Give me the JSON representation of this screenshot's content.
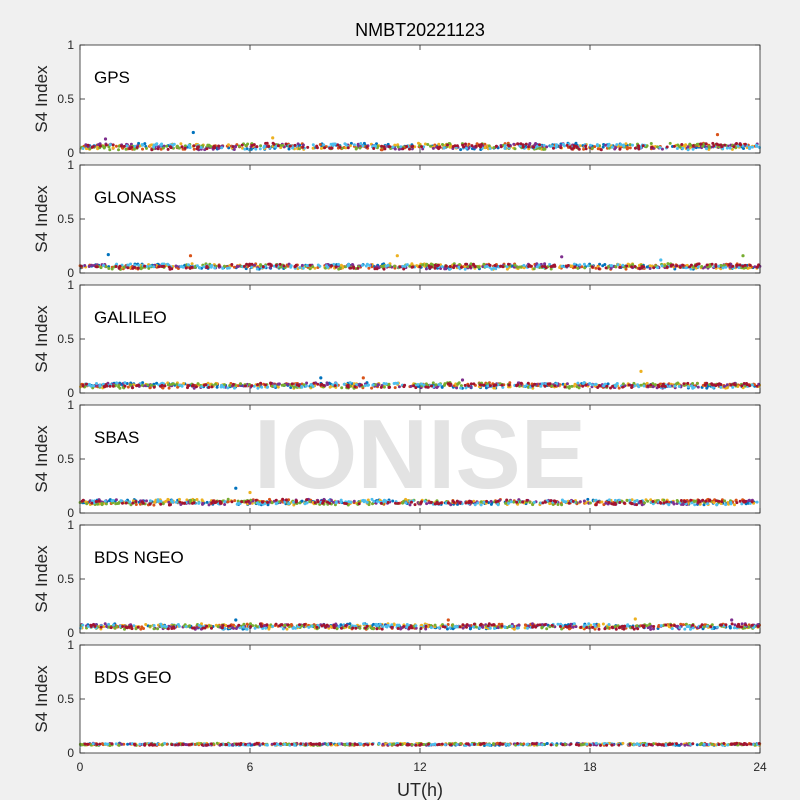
{
  "figure": {
    "title": "NMBT20221123",
    "watermark": "IONISE",
    "xlabel": "UT(h)",
    "background_color": "#f0f0f0",
    "panel_color": "#ffffff",
    "axis_color": "#262626",
    "watermark_color": "#e3e3e3"
  },
  "chart_data": {
    "type": "scatter",
    "series_colors": [
      "#0072bd",
      "#d95319",
      "#edb120",
      "#7e2f8e",
      "#77ac30",
      "#4dbeee",
      "#a2142f"
    ],
    "panels": [
      {
        "name": "GPS",
        "ylabel": "S4 Index",
        "xlim": [
          0,
          24
        ],
        "ylim": [
          0,
          1
        ],
        "xticks": [
          "0",
          "6",
          "12",
          "18",
          "24"
        ],
        "yticks": [
          "0",
          "0.5",
          "1"
        ],
        "base_level": 0.06,
        "spread": 0.035,
        "spikes": [
          [
            4.0,
            0.19
          ],
          [
            22.5,
            0.17
          ],
          [
            6.8,
            0.14
          ],
          [
            0.9,
            0.13
          ]
        ]
      },
      {
        "name": "GLONASS",
        "ylabel": "S4 Index",
        "xlim": [
          0,
          24
        ],
        "ylim": [
          0,
          1
        ],
        "xticks": [
          "0",
          "6",
          "12",
          "18",
          "24"
        ],
        "yticks": [
          "0",
          "0.5",
          "1"
        ],
        "base_level": 0.06,
        "spread": 0.03,
        "spikes": [
          [
            1.0,
            0.17
          ],
          [
            3.9,
            0.16
          ],
          [
            11.2,
            0.16
          ],
          [
            17.0,
            0.15
          ],
          [
            23.4,
            0.16
          ],
          [
            20.5,
            0.12
          ]
        ]
      },
      {
        "name": "GALILEO",
        "ylabel": "S4 Index",
        "xlim": [
          0,
          24
        ],
        "ylim": [
          0,
          1
        ],
        "xticks": [
          "0",
          "6",
          "12",
          "18",
          "24"
        ],
        "yticks": [
          "0",
          "0.5",
          "1"
        ],
        "base_level": 0.07,
        "spread": 0.03,
        "spikes": [
          [
            8.5,
            0.14
          ],
          [
            10.0,
            0.14
          ],
          [
            19.8,
            0.2
          ],
          [
            13.5,
            0.12
          ]
        ]
      },
      {
        "name": "SBAS",
        "ylabel": "S4 Index",
        "xlim": [
          0,
          24
        ],
        "ylim": [
          0,
          1
        ],
        "xticks": [
          "0",
          "6",
          "12",
          "18",
          "24"
        ],
        "yticks": [
          "0",
          "0.5",
          "1"
        ],
        "base_level": 0.1,
        "spread": 0.03,
        "spikes": [
          [
            5.5,
            0.23
          ],
          [
            8.6,
            0.25
          ],
          [
            6.0,
            0.19
          ]
        ]
      },
      {
        "name": "BDS NGEO",
        "ylabel": "S4 Index",
        "xlim": [
          0,
          24
        ],
        "ylim": [
          0,
          1
        ],
        "xticks": [
          "0",
          "6",
          "12",
          "18",
          "24"
        ],
        "yticks": [
          "0",
          "0.5",
          "1"
        ],
        "base_level": 0.06,
        "spread": 0.03,
        "spikes": [
          [
            5.5,
            0.12
          ],
          [
            13.0,
            0.12
          ],
          [
            19.6,
            0.13
          ],
          [
            23.0,
            0.12
          ]
        ]
      },
      {
        "name": "BDS GEO",
        "ylabel": "S4 Index",
        "xlim": [
          0,
          24
        ],
        "ylim": [
          0,
          1
        ],
        "xticks": [
          "0",
          "6",
          "12",
          "18",
          "24"
        ],
        "yticks": [
          "0",
          "0.5",
          "1"
        ],
        "base_level": 0.08,
        "spread": 0.012,
        "spikes": []
      }
    ]
  }
}
